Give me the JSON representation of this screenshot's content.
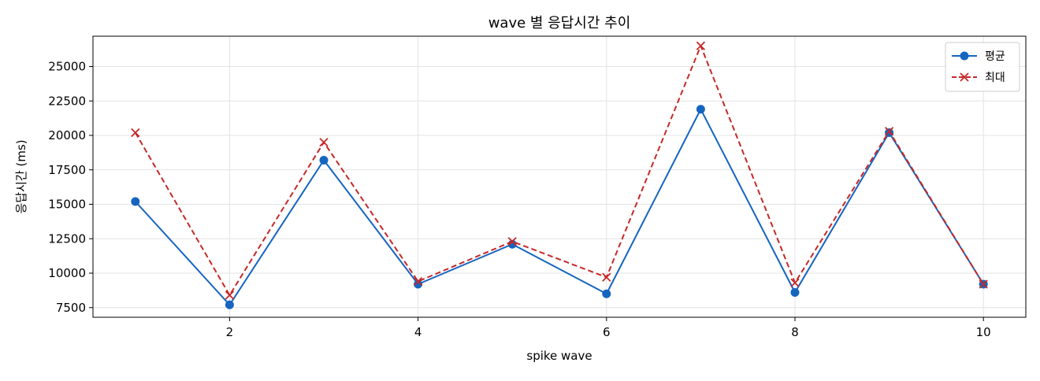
{
  "chart_data": {
    "type": "line",
    "title": "wave 별 응답시간 추이",
    "xlabel": "spike wave",
    "ylabel": "응답시간 (ms)",
    "x": [
      1,
      2,
      3,
      4,
      5,
      6,
      7,
      8,
      9,
      10
    ],
    "xticks": [
      2,
      4,
      6,
      8,
      10
    ],
    "yticks": [
      7500,
      10000,
      12500,
      15000,
      17500,
      20000,
      22500,
      25000
    ],
    "xlim": [
      0.55,
      10.45
    ],
    "ylim": [
      6800,
      27200
    ],
    "grid": true,
    "legend_position": "top-right",
    "series": [
      {
        "name": "평균",
        "values": [
          15200,
          7700,
          18200,
          9200,
          12100,
          8500,
          21900,
          8600,
          20200,
          9200
        ],
        "color": "#1565c0",
        "marker": "circle",
        "line_style": "solid"
      },
      {
        "name": "최대",
        "values": [
          20200,
          8400,
          19500,
          9400,
          12300,
          9700,
          26500,
          9300,
          20300,
          9200
        ],
        "color": "#c62828",
        "marker": "x",
        "line_style": "dashed"
      }
    ]
  }
}
